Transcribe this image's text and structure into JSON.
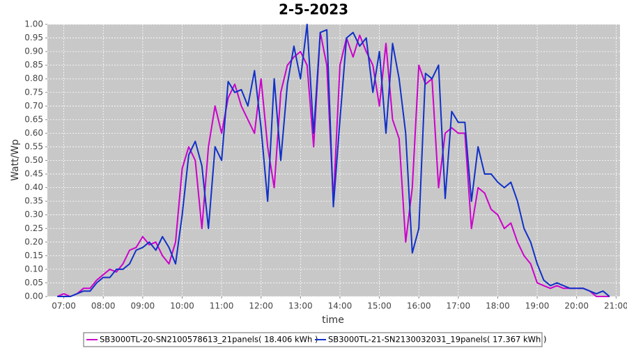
{
  "chart_data": {
    "type": "line",
    "title": "2-5-2023",
    "x_label": "time",
    "y_label": "Watt/Wp",
    "x": [
      "06:50",
      "07:00",
      "07:10",
      "07:20",
      "07:30",
      "07:40",
      "07:50",
      "08:00",
      "08:10",
      "08:20",
      "08:30",
      "08:40",
      "08:50",
      "09:00",
      "09:10",
      "09:20",
      "09:30",
      "09:40",
      "09:50",
      "10:00",
      "10:10",
      "10:20",
      "10:30",
      "10:40",
      "10:50",
      "11:00",
      "11:10",
      "11:20",
      "11:30",
      "11:40",
      "11:50",
      "12:00",
      "12:10",
      "12:20",
      "12:30",
      "12:40",
      "12:50",
      "13:00",
      "13:10",
      "13:20",
      "13:30",
      "13:40",
      "13:50",
      "14:00",
      "14:10",
      "14:20",
      "14:30",
      "14:40",
      "14:50",
      "15:00",
      "15:10",
      "15:20",
      "15:30",
      "15:40",
      "15:50",
      "16:00",
      "16:10",
      "16:20",
      "16:30",
      "16:40",
      "16:50",
      "17:00",
      "17:10",
      "17:20",
      "17:30",
      "17:40",
      "17:50",
      "18:00",
      "18:10",
      "18:20",
      "18:30",
      "18:40",
      "18:50",
      "19:00",
      "19:10",
      "19:20",
      "19:30",
      "19:40",
      "19:50",
      "20:00",
      "20:10",
      "20:20",
      "20:30",
      "20:40",
      "20:50"
    ],
    "series": [
      {
        "name": "SB3000TL-20-SN2100578613_21panels( 18.406 kWh )",
        "color": "#cc00cc",
        "values": [
          0.0,
          0.01,
          0.0,
          0.01,
          0.03,
          0.03,
          0.06,
          0.08,
          0.1,
          0.09,
          0.12,
          0.17,
          0.18,
          0.22,
          0.19,
          0.2,
          0.15,
          0.12,
          0.2,
          0.47,
          0.55,
          0.5,
          0.25,
          0.55,
          0.7,
          0.6,
          0.73,
          0.78,
          0.7,
          0.65,
          0.6,
          0.8,
          0.55,
          0.4,
          0.75,
          0.85,
          0.88,
          0.9,
          0.85,
          0.55,
          0.97,
          0.85,
          0.35,
          0.85,
          0.95,
          0.88,
          0.96,
          0.9,
          0.85,
          0.7,
          0.93,
          0.65,
          0.58,
          0.2,
          0.4,
          0.85,
          0.78,
          0.8,
          0.4,
          0.6,
          0.62,
          0.6,
          0.6,
          0.25,
          0.4,
          0.38,
          0.32,
          0.3,
          0.25,
          0.27,
          0.2,
          0.15,
          0.12,
          0.05,
          0.04,
          0.03,
          0.04,
          0.03,
          0.03,
          0.03,
          0.03,
          0.02,
          0.0,
          0.0,
          0.0
        ]
      },
      {
        "name": "SB3000TL-21-SN2130032031_19panels( 17.367 kWh )",
        "color": "#1030c8",
        "values": [
          0.0,
          0.0,
          0.0,
          0.01,
          0.02,
          0.02,
          0.05,
          0.07,
          0.07,
          0.1,
          0.1,
          0.12,
          0.17,
          0.18,
          0.2,
          0.17,
          0.22,
          0.18,
          0.12,
          0.3,
          0.52,
          0.57,
          0.48,
          0.25,
          0.55,
          0.5,
          0.79,
          0.75,
          0.76,
          0.7,
          0.83,
          0.62,
          0.35,
          0.8,
          0.5,
          0.78,
          0.92,
          0.8,
          1.0,
          0.6,
          0.97,
          0.98,
          0.33,
          0.65,
          0.95,
          0.97,
          0.92,
          0.95,
          0.75,
          0.9,
          0.6,
          0.93,
          0.8,
          0.6,
          0.16,
          0.25,
          0.82,
          0.8,
          0.85,
          0.36,
          0.68,
          0.64,
          0.64,
          0.35,
          0.55,
          0.45,
          0.45,
          0.42,
          0.4,
          0.42,
          0.35,
          0.25,
          0.2,
          0.12,
          0.06,
          0.04,
          0.05,
          0.04,
          0.03,
          0.03,
          0.03,
          0.02,
          0.01,
          0.02,
          0.0
        ]
      }
    ],
    "xlim": [
      "06:35",
      "21:06"
    ],
    "xticks": [
      "07:00",
      "08:00",
      "09:00",
      "10:00",
      "11:00",
      "12:00",
      "13:00",
      "14:00",
      "15:00",
      "16:00",
      "17:00",
      "18:00",
      "19:00",
      "20:00",
      "21:00"
    ],
    "ylim": [
      0,
      1
    ],
    "yticks": [
      {
        "value": 0,
        "label": "0.00"
      },
      0.05,
      {
        "value": 0.1,
        "label": "0.10"
      },
      0.15,
      {
        "value": 0.2,
        "label": "0.20"
      },
      0.25,
      {
        "value": 0.3,
        "label": "0.30"
      },
      0.35,
      {
        "value": 0.4,
        "label": "0.40"
      },
      0.45,
      {
        "value": 0.5,
        "label": "0.50"
      },
      0.55,
      {
        "value": 0.6,
        "label": "0.60"
      },
      0.65,
      {
        "value": 0.7,
        "label": "0.70"
      },
      0.75,
      {
        "value": 0.8,
        "label": "0.80"
      },
      0.85,
      {
        "value": 0.9,
        "label": "0.90"
      },
      0.95,
      {
        "value": 1,
        "label": "1.00"
      }
    ],
    "grid": true,
    "legend": "bottom"
  }
}
